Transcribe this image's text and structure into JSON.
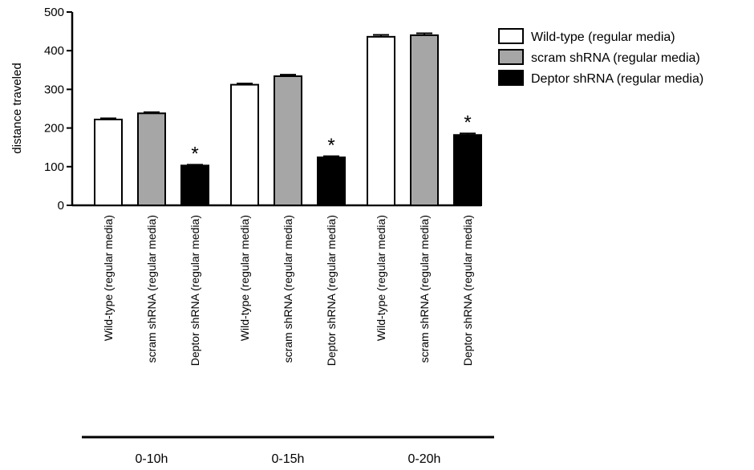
{
  "chart_data": {
    "type": "bar",
    "title": "",
    "xlabel": "",
    "ylabel": "distance traveled",
    "ylim": [
      0,
      500
    ],
    "yticks": [
      0,
      100,
      200,
      300,
      400,
      500
    ],
    "grid": false,
    "legend_position": "top-right",
    "groups": [
      "0-10h",
      "0-15h",
      "0-20h"
    ],
    "series": [
      {
        "name": "Wild-type (regular media)",
        "color": "#ffffff",
        "values": [
          222,
          312,
          436
        ],
        "errors": [
          3,
          3,
          5
        ],
        "significant": [
          false,
          false,
          false
        ]
      },
      {
        "name": "scram shRNA (regular media)",
        "color": "#a6a6a6",
        "values": [
          238,
          334,
          440
        ],
        "errors": [
          3,
          4,
          5
        ],
        "significant": [
          false,
          false,
          false
        ]
      },
      {
        "name": "Deptor shRNA (regular media)",
        "color": "#000000",
        "values": [
          103,
          124,
          182
        ],
        "errors": [
          2,
          3,
          4
        ],
        "significant": [
          true,
          true,
          true
        ]
      }
    ],
    "significance_marker": "*"
  }
}
